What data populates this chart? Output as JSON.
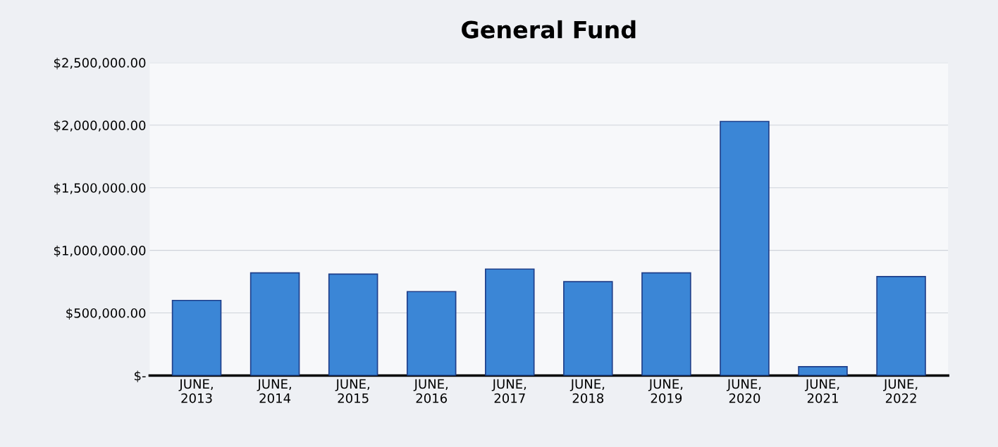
{
  "chart_data": {
    "type": "bar",
    "title": "General Fund",
    "categories": [
      "JUNE,\n2013",
      "JUNE,\n2014",
      "JUNE,\n2015",
      "JUNE,\n2016",
      "JUNE,\n2017",
      "JUNE,\n2018",
      "JUNE,\n2019",
      "JUNE,\n2020",
      "JUNE,\n2021",
      "JUNE,\n2022"
    ],
    "values": [
      600000,
      820000,
      810000,
      670000,
      850000,
      750000,
      820000,
      2030000,
      70000,
      790000
    ],
    "color": "#3b86d6",
    "ylim": [
      0,
      2500000
    ],
    "yticks": [
      {
        "value": 0,
        "label": "$-"
      },
      {
        "value": 500000,
        "label": "$500,000.00"
      },
      {
        "value": 1000000,
        "label": "$1,000,000.00"
      },
      {
        "value": 1500000,
        "label": "$1,500,000.00"
      },
      {
        "value": 2000000,
        "label": "$2,000,000.00"
      },
      {
        "value": 2500000,
        "label": "$2,500,000.00"
      }
    ],
    "grid": "y"
  }
}
